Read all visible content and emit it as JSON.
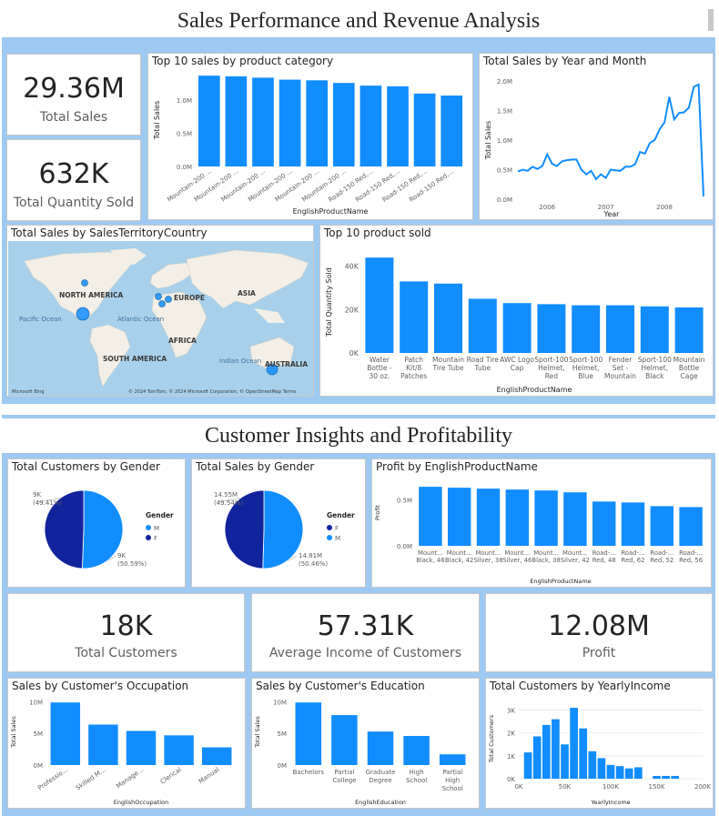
{
  "sections": [
    {
      "title": "Sales Performance and Revenue Analysis"
    },
    {
      "title": "Customer Insights and Profitability"
    }
  ],
  "kpis": {
    "total_sales": {
      "value": "29.36M",
      "label": "Total Sales"
    },
    "total_quantity": {
      "value": "632K",
      "label": "Total Quantity Sold"
    },
    "total_customers": {
      "value": "18K",
      "label": "Total Customers"
    },
    "avg_income": {
      "value": "57.31K",
      "label": "Average Income of Customers"
    },
    "profit": {
      "value": "12.08M",
      "label": "Profit"
    }
  },
  "map": {
    "title": "Total Sales by SalesTerritoryCountry",
    "labels": [
      "NORTH AMERICA",
      "EUROPE",
      "ASIA",
      "AFRICA",
      "SOUTH AMERICA",
      "AUSTRALIA",
      "Pacific Ocean",
      "Atlantic Ocean",
      "Indian Ocean"
    ],
    "credit": "© 2024 TomTom, © 2024 Microsoft Corporation, © OpenStreetMap Terms",
    "brand": "Microsoft Bing"
  },
  "colors": {
    "primary": "#118dff",
    "dark": "#12239e",
    "bg": "#9ec9f2"
  },
  "chart_data": [
    {
      "id": "top10cat",
      "type": "bar",
      "title": "Top 10 sales by product category",
      "xlabel": "EnglishProductName",
      "ylabel": "Total Sales",
      "categories": [
        "Mountain-200 ...",
        "Mountain-200 ...",
        "Mountain-200 ...",
        "Mountain-200 ...",
        "Mountain-200 ...",
        "Mountain-200 ...",
        "Road-150 Red,...",
        "Road-150 Red,...",
        "Road-150 Red,...",
        "Road-150 Red,..."
      ],
      "values": [
        1.37,
        1.36,
        1.34,
        1.31,
        1.3,
        1.26,
        1.22,
        1.21,
        1.1,
        1.07
      ],
      "ylim": [
        0,
        1.4
      ],
      "yticks": [
        0,
        0.5,
        1.0
      ],
      "yticklabels": [
        "0.0M",
        "0.5M",
        "1.0M"
      ]
    },
    {
      "id": "yearmonth",
      "type": "line",
      "title": "Total Sales by Year and Month",
      "xlabel": "Year",
      "ylabel": "Total Sales",
      "xticklabels": [
        "2006",
        "2007",
        "2008"
      ],
      "ylim": [
        0,
        2.0
      ],
      "yticks": [
        0,
        0.5,
        1.0,
        1.5,
        2.0
      ],
      "yticklabels": [
        "0.0M",
        "0.5M",
        "1.0M",
        "1.5M",
        "2.0M"
      ],
      "values": [
        0.47,
        0.5,
        0.48,
        0.55,
        0.51,
        0.56,
        0.76,
        0.6,
        0.56,
        0.64,
        0.66,
        0.67,
        0.67,
        0.5,
        0.42,
        0.48,
        0.34,
        0.42,
        0.36,
        0.5,
        0.49,
        0.48,
        0.55,
        0.55,
        0.59,
        0.8,
        0.77,
        0.95,
        1.0,
        1.18,
        1.3,
        1.73,
        1.35,
        1.46,
        1.47,
        1.55,
        1.9,
        1.94,
        0.05
      ]
    },
    {
      "id": "top10sold",
      "type": "bar",
      "title": "Top 10 product sold",
      "xlabel": "EnglishProductName",
      "ylabel": "Total Quantity Sold",
      "categories": [
        "Water Bottle - 30 oz.",
        "Patch Kit/8 Patches",
        "Mountain Tire Tube",
        "Road Tire Tube",
        "AWC Logo Cap",
        "Sport-100 Helmet, Red",
        "Sport-100 Helmet, Blue",
        "Fender Set - Mountain",
        "Sport-100 Helmet, Black",
        "Mountain Bottle Cage"
      ],
      "values": [
        44,
        33,
        32,
        25,
        23,
        22.5,
        22,
        22,
        21.5,
        21
      ],
      "ylim": [
        0,
        47
      ],
      "yticks": [
        0,
        20,
        40
      ],
      "yticklabels": [
        "0K",
        "20K",
        "40K"
      ]
    },
    {
      "id": "custgender",
      "type": "pie",
      "title": "Total Customers by Gender",
      "legend_title": "Gender",
      "labels": [
        "M",
        "F"
      ],
      "values": [
        50.59,
        49.41
      ],
      "value_labels": [
        "9K\n(50.59%)",
        "9K\n(49.41%)"
      ],
      "legend": [
        "M",
        "F"
      ]
    },
    {
      "id": "salesgender",
      "type": "pie",
      "title": "Total Sales by Gender",
      "legend_title": "Gender",
      "labels": [
        "M",
        "F"
      ],
      "values": [
        50.46,
        49.54
      ],
      "value_labels": [
        "14.81M\n(50.46%)",
        "14.55M\n(49.54%)"
      ],
      "legend": [
        "F",
        "M"
      ]
    },
    {
      "id": "profitprod",
      "type": "bar",
      "title": "Profit by EnglishProductName",
      "xlabel": "EnglishProductName",
      "ylabel": "Profit",
      "categories": [
        "Mount... Black, 46",
        "Mount... Black, 42",
        "Mount... Silver, 38",
        "Mount... Silver, 46",
        "Mount... Black, 38",
        "Mount... Silver, 42",
        "Road-... Red, 48",
        "Road-... Red, 62",
        "Road-... Red, 52",
        "Road-... Red, 56"
      ],
      "values": [
        0.64,
        0.63,
        0.62,
        0.61,
        0.6,
        0.58,
        0.48,
        0.47,
        0.43,
        0.42
      ],
      "ylim": [
        0,
        0.72
      ],
      "yticks": [
        0,
        0.5
      ],
      "yticklabels": [
        "0.0M",
        "0.5M"
      ]
    },
    {
      "id": "occupation",
      "type": "bar",
      "title": "Sales by Customer's Occupation",
      "xlabel": "EnglishOccupation",
      "ylabel": "Total Sales",
      "categories": [
        "Professio...",
        "Skilled M...",
        "Manage...",
        "Clerical",
        "Manual"
      ],
      "values": [
        9.9,
        6.4,
        5.4,
        4.7,
        2.8
      ],
      "ylim": [
        0,
        10.5
      ],
      "yticks": [
        0,
        5,
        10
      ],
      "yticklabels": [
        "0M",
        "5M",
        "10M"
      ]
    },
    {
      "id": "education",
      "type": "bar",
      "title": "Sales by Customer's Education",
      "xlabel": "EnglishEducation",
      "ylabel": "Total Sales",
      "categories": [
        "Bachelors",
        "Partial College",
        "Graduate Degree",
        "High School",
        "Partial High School"
      ],
      "values": [
        9.9,
        7.9,
        5.3,
        4.6,
        1.7
      ],
      "ylim": [
        0,
        10.5
      ],
      "yticks": [
        0,
        5,
        10
      ],
      "yticklabels": [
        "0M",
        "5M",
        "10M"
      ]
    },
    {
      "id": "yearlyincome",
      "type": "bar",
      "title": "Total Customers by YearlyIncome",
      "xlabel": "YearlyIncome",
      "ylabel": "Total Customers",
      "x": [
        10,
        20,
        30,
        40,
        50,
        60,
        70,
        80,
        90,
        100,
        110,
        120,
        130,
        150,
        160,
        170
      ],
      "values": [
        1.15,
        1.85,
        2.35,
        2.6,
        1.5,
        3.1,
        2.2,
        1.2,
        0.9,
        0.6,
        0.55,
        0.45,
        0.5,
        0.12,
        0.12,
        0.12
      ],
      "xlim": [
        0,
        200
      ],
      "xticks": [
        0,
        50,
        100,
        150,
        200
      ],
      "xticklabels": [
        "0K",
        "50K",
        "100K",
        "150K",
        "200K"
      ],
      "ylim": [
        0,
        3.5
      ],
      "yticks": [
        0,
        1,
        2,
        3
      ],
      "yticklabels": [
        "0K",
        "1K",
        "2K",
        "3K"
      ]
    }
  ]
}
